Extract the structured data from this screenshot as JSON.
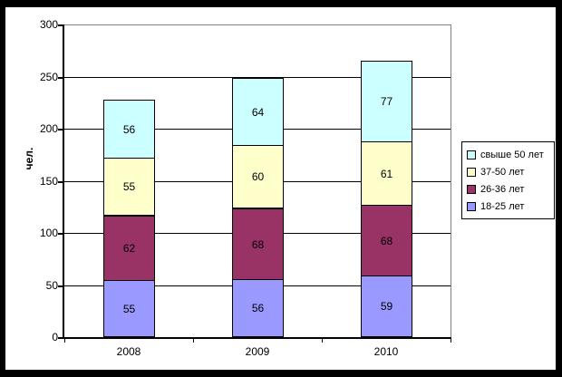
{
  "chart_data": {
    "type": "bar",
    "stacked": true,
    "title": "",
    "ylabel": "чел.",
    "xlabel": "",
    "ylim": [
      0,
      300
    ],
    "y_ticks": [
      0,
      50,
      100,
      150,
      200,
      250,
      300
    ],
    "grid": true,
    "value_labels_shown": true,
    "legend_position": "right",
    "categories": [
      "2008",
      "2009",
      "2010"
    ],
    "series": [
      {
        "name": "18-25 лет",
        "color": "#9999FF",
        "values": [
          55,
          56,
          59
        ]
      },
      {
        "name": "26-36 лет",
        "color": "#993366",
        "values": [
          62,
          68,
          68
        ]
      },
      {
        "name": "37-50 лет",
        "color": "#FFFFCC",
        "values": [
          55,
          60,
          61
        ]
      },
      {
        "name": "свыше 50 лет",
        "color": "#CCFFFF",
        "values": [
          56,
          64,
          77
        ]
      }
    ],
    "legend": [
      "свыше 50 лет",
      "37-50 лет",
      "26-36 лет",
      "18-25 лет"
    ]
  },
  "colors": {
    "frame": "#000000",
    "chart_background": "#FFFFFF",
    "plot_border": "#808080",
    "axis": "#000000",
    "gridline": "#000000",
    "text": "#000000"
  }
}
